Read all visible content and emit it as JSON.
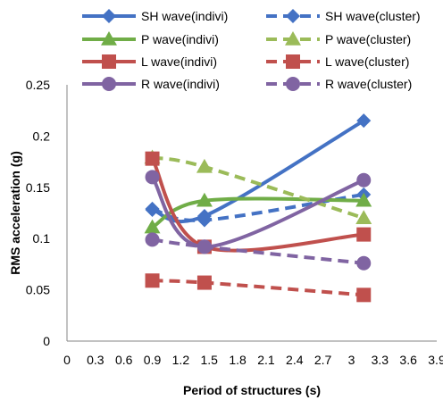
{
  "chart_data": {
    "type": "line",
    "title": "",
    "xlabel": "Period of structures (s)",
    "ylabel": "RMS acceleration (g)",
    "xlim": [
      0,
      3.9
    ],
    "ylim": [
      0,
      0.25
    ],
    "x_ticks": [
      "0",
      "0.3",
      "0.6",
      "0.9",
      "1.2",
      "1.5",
      "1.8",
      "2.1",
      "2.4",
      "2.7",
      "3",
      "3.3",
      "3.6",
      "3.9"
    ],
    "y_ticks": [
      "0",
      "0.05",
      "0.1",
      "0.15",
      "0.2",
      "0.25"
    ],
    "grid": false,
    "legend_position": "top",
    "x": [
      0.9,
      1.45,
      3.13
    ],
    "series": [
      {
        "name": "SH wave(indivi)",
        "values": [
          0.128,
          0.122,
          0.215
        ],
        "color": "#4472C4",
        "marker": "diamond",
        "dash": false
      },
      {
        "name": "SH wave(cluster)",
        "values": [
          0.129,
          0.118,
          0.143
        ],
        "color": "#4472C4",
        "marker": "diamond",
        "dash": true
      },
      {
        "name": "P wave(indivi)",
        "values": [
          0.111,
          0.137,
          0.137
        ],
        "color": "#70AD47",
        "marker": "triangle",
        "dash": false
      },
      {
        "name": "P wave(cluster)",
        "values": [
          0.179,
          0.17,
          0.12
        ],
        "color": "#9BBB59",
        "marker": "triangle",
        "dash": true
      },
      {
        "name": "L wave(indivi)",
        "values": [
          0.178,
          0.092,
          0.104
        ],
        "color": "#C0504D",
        "marker": "square",
        "dash": false
      },
      {
        "name": "L wave(cluster)",
        "values": [
          0.059,
          0.057,
          0.045
        ],
        "color": "#C0504D",
        "marker": "square",
        "dash": true
      },
      {
        "name": "R wave(indivi)",
        "values": [
          0.16,
          0.092,
          0.157
        ],
        "color": "#8064A2",
        "marker": "circle",
        "dash": false
      },
      {
        "name": "R wave(cluster)",
        "values": [
          0.099,
          0.092,
          0.076
        ],
        "color": "#8064A2",
        "marker": "circle",
        "dash": true
      }
    ]
  }
}
